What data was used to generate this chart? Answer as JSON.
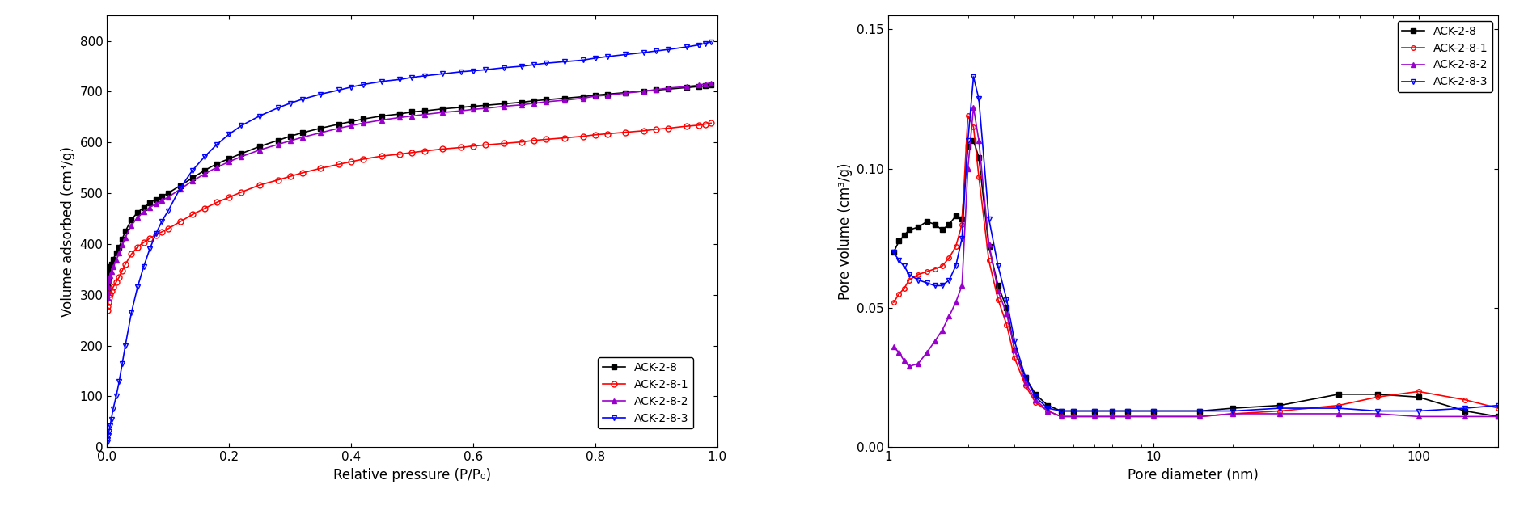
{
  "left": {
    "xlabel": "Relative pressure (P/P₀)",
    "ylabel": "Volume adsorbed (cm³/g)",
    "xlim": [
      0,
      1.0
    ],
    "ylim": [
      0,
      850
    ],
    "yticks": [
      0,
      100,
      200,
      300,
      400,
      500,
      600,
      700,
      800
    ],
    "xticks": [
      0.0,
      0.2,
      0.4,
      0.6,
      0.8,
      1.0
    ],
    "series": {
      "ACK-2-8": {
        "color": "#000000",
        "marker": "s",
        "marker_size": 5,
        "x": [
          0.0005,
          0.001,
          0.002,
          0.003,
          0.005,
          0.007,
          0.01,
          0.015,
          0.02,
          0.025,
          0.03,
          0.04,
          0.05,
          0.06,
          0.07,
          0.08,
          0.09,
          0.1,
          0.12,
          0.14,
          0.16,
          0.18,
          0.2,
          0.22,
          0.25,
          0.28,
          0.3,
          0.32,
          0.35,
          0.38,
          0.4,
          0.42,
          0.45,
          0.48,
          0.5,
          0.52,
          0.55,
          0.58,
          0.6,
          0.62,
          0.65,
          0.68,
          0.7,
          0.72,
          0.75,
          0.78,
          0.8,
          0.82,
          0.85,
          0.88,
          0.9,
          0.92,
          0.95,
          0.97,
          0.98,
          0.99
        ],
        "y": [
          310,
          320,
          330,
          345,
          355,
          360,
          370,
          382,
          394,
          410,
          425,
          448,
          462,
          472,
          481,
          488,
          494,
          500,
          515,
          530,
          545,
          558,
          568,
          578,
          592,
          604,
          612,
          619,
          628,
          636,
          641,
          646,
          652,
          656,
          660,
          662,
          666,
          669,
          671,
          673,
          676,
          679,
          682,
          684,
          687,
          690,
          693,
          695,
          698,
          701,
          703,
          705,
          708,
          710,
          711,
          713
        ]
      },
      "ACK-2-8-1": {
        "color": "#ff0000",
        "marker": "o",
        "marker_size": 5,
        "marker_facecolor": "none",
        "x": [
          0.0005,
          0.001,
          0.002,
          0.003,
          0.005,
          0.007,
          0.01,
          0.015,
          0.02,
          0.025,
          0.03,
          0.04,
          0.05,
          0.06,
          0.07,
          0.08,
          0.09,
          0.1,
          0.12,
          0.14,
          0.16,
          0.18,
          0.2,
          0.22,
          0.25,
          0.28,
          0.3,
          0.32,
          0.35,
          0.38,
          0.4,
          0.42,
          0.45,
          0.48,
          0.5,
          0.52,
          0.55,
          0.58,
          0.6,
          0.62,
          0.65,
          0.68,
          0.7,
          0.72,
          0.75,
          0.78,
          0.8,
          0.82,
          0.85,
          0.88,
          0.9,
          0.92,
          0.95,
          0.97,
          0.98,
          0.99
        ],
        "y": [
          270,
          278,
          285,
          295,
          302,
          308,
          315,
          325,
          335,
          348,
          360,
          380,
          394,
          403,
          411,
          418,
          424,
          430,
          444,
          458,
          470,
          482,
          492,
          502,
          516,
          526,
          533,
          540,
          549,
          557,
          562,
          567,
          573,
          577,
          580,
          583,
          587,
          590,
          593,
          595,
          598,
          601,
          604,
          606,
          609,
          612,
          615,
          617,
          620,
          623,
          626,
          628,
          632,
          634,
          636,
          638
        ]
      },
      "ACK-2-8-2": {
        "color": "#9900cc",
        "marker": "^",
        "marker_size": 5,
        "x": [
          0.0005,
          0.001,
          0.002,
          0.003,
          0.005,
          0.007,
          0.01,
          0.015,
          0.02,
          0.025,
          0.03,
          0.04,
          0.05,
          0.06,
          0.07,
          0.08,
          0.09,
          0.1,
          0.12,
          0.14,
          0.16,
          0.18,
          0.2,
          0.22,
          0.25,
          0.28,
          0.3,
          0.32,
          0.35,
          0.38,
          0.4,
          0.42,
          0.45,
          0.48,
          0.5,
          0.52,
          0.55,
          0.58,
          0.6,
          0.62,
          0.65,
          0.68,
          0.7,
          0.72,
          0.75,
          0.78,
          0.8,
          0.82,
          0.85,
          0.88,
          0.9,
          0.92,
          0.95,
          0.97,
          0.98,
          0.99
        ],
        "y": [
          295,
          305,
          315,
          328,
          338,
          345,
          355,
          368,
          382,
          398,
          413,
          437,
          452,
          463,
          472,
          479,
          486,
          492,
          508,
          524,
          538,
          551,
          562,
          572,
          585,
          596,
          603,
          610,
          619,
          628,
          633,
          638,
          644,
          649,
          652,
          655,
          659,
          662,
          665,
          667,
          671,
          674,
          677,
          680,
          683,
          687,
          691,
          693,
          697,
          701,
          704,
          707,
          710,
          713,
          715,
          717
        ]
      },
      "ACK-2-8-3": {
        "color": "#0000ff",
        "marker": "v",
        "marker_size": 5,
        "marker_facecolor": "none",
        "x": [
          0.0005,
          0.001,
          0.002,
          0.003,
          0.005,
          0.007,
          0.01,
          0.015,
          0.02,
          0.025,
          0.03,
          0.04,
          0.05,
          0.06,
          0.07,
          0.08,
          0.09,
          0.1,
          0.12,
          0.14,
          0.16,
          0.18,
          0.2,
          0.22,
          0.25,
          0.28,
          0.3,
          0.32,
          0.35,
          0.38,
          0.4,
          0.42,
          0.45,
          0.48,
          0.5,
          0.52,
          0.55,
          0.58,
          0.6,
          0.62,
          0.65,
          0.68,
          0.7,
          0.72,
          0.75,
          0.78,
          0.8,
          0.82,
          0.85,
          0.88,
          0.9,
          0.92,
          0.95,
          0.97,
          0.98,
          0.99
        ],
        "y": [
          10,
          15,
          22,
          30,
          42,
          55,
          75,
          100,
          130,
          165,
          200,
          265,
          315,
          355,
          390,
          420,
          445,
          465,
          510,
          545,
          572,
          596,
          616,
          633,
          652,
          668,
          677,
          685,
          695,
          703,
          709,
          714,
          720,
          724,
          728,
          731,
          735,
          739,
          741,
          743,
          747,
          750,
          753,
          756,
          759,
          762,
          766,
          769,
          773,
          777,
          780,
          783,
          788,
          792,
          795,
          798
        ]
      }
    }
  },
  "right": {
    "xlabel": "Pore diameter (nm)",
    "ylabel": "Pore volume (cm³/g)",
    "xlim": [
      1,
      200
    ],
    "ylim": [
      0.0,
      0.155
    ],
    "yticks": [
      0.0,
      0.05,
      0.1,
      0.15
    ],
    "series": {
      "ACK-2-8": {
        "color": "#000000",
        "marker": "s",
        "marker_size": 4,
        "x": [
          1.05,
          1.1,
          1.15,
          1.2,
          1.3,
          1.4,
          1.5,
          1.6,
          1.7,
          1.8,
          1.9,
          2.0,
          2.1,
          2.2,
          2.4,
          2.6,
          2.8,
          3.0,
          3.3,
          3.6,
          4.0,
          4.5,
          5.0,
          6.0,
          7.0,
          8.0,
          10.0,
          15.0,
          20.0,
          30.0,
          50.0,
          70.0,
          100.0,
          150.0,
          200.0
        ],
        "y": [
          0.07,
          0.074,
          0.076,
          0.078,
          0.079,
          0.081,
          0.08,
          0.078,
          0.08,
          0.083,
          0.082,
          0.108,
          0.11,
          0.104,
          0.072,
          0.058,
          0.05,
          0.035,
          0.025,
          0.019,
          0.015,
          0.013,
          0.013,
          0.013,
          0.013,
          0.013,
          0.013,
          0.013,
          0.014,
          0.015,
          0.019,
          0.019,
          0.018,
          0.013,
          0.011
        ]
      },
      "ACK-2-8-1": {
        "color": "#ff0000",
        "marker": "o",
        "marker_size": 4,
        "marker_facecolor": "none",
        "x": [
          1.05,
          1.1,
          1.15,
          1.2,
          1.3,
          1.4,
          1.5,
          1.6,
          1.7,
          1.8,
          1.9,
          2.0,
          2.1,
          2.2,
          2.4,
          2.6,
          2.8,
          3.0,
          3.3,
          3.6,
          4.0,
          4.5,
          5.0,
          6.0,
          7.0,
          8.0,
          10.0,
          15.0,
          20.0,
          30.0,
          50.0,
          70.0,
          100.0,
          150.0,
          200.0
        ],
        "y": [
          0.052,
          0.055,
          0.057,
          0.06,
          0.062,
          0.063,
          0.064,
          0.065,
          0.068,
          0.072,
          0.08,
          0.119,
          0.115,
          0.097,
          0.067,
          0.053,
          0.044,
          0.032,
          0.022,
          0.016,
          0.013,
          0.011,
          0.011,
          0.011,
          0.011,
          0.011,
          0.011,
          0.011,
          0.012,
          0.013,
          0.015,
          0.018,
          0.02,
          0.017,
          0.014
        ]
      },
      "ACK-2-8-2": {
        "color": "#9900cc",
        "marker": "^",
        "marker_size": 4,
        "x": [
          1.05,
          1.1,
          1.15,
          1.2,
          1.3,
          1.4,
          1.5,
          1.6,
          1.7,
          1.8,
          1.9,
          2.0,
          2.1,
          2.2,
          2.4,
          2.6,
          2.8,
          3.0,
          3.3,
          3.6,
          4.0,
          4.5,
          5.0,
          6.0,
          7.0,
          8.0,
          10.0,
          15.0,
          20.0,
          30.0,
          50.0,
          70.0,
          100.0,
          150.0,
          200.0
        ],
        "y": [
          0.036,
          0.034,
          0.031,
          0.029,
          0.03,
          0.034,
          0.038,
          0.042,
          0.047,
          0.052,
          0.058,
          0.1,
          0.122,
          0.11,
          0.073,
          0.056,
          0.048,
          0.035,
          0.023,
          0.017,
          0.013,
          0.011,
          0.011,
          0.011,
          0.011,
          0.011,
          0.011,
          0.011,
          0.012,
          0.012,
          0.012,
          0.012,
          0.011,
          0.011,
          0.011
        ]
      },
      "ACK-2-8-3": {
        "color": "#0000ff",
        "marker": "v",
        "marker_size": 4,
        "marker_facecolor": "none",
        "x": [
          1.05,
          1.1,
          1.15,
          1.2,
          1.3,
          1.4,
          1.5,
          1.6,
          1.7,
          1.8,
          1.9,
          2.0,
          2.1,
          2.2,
          2.4,
          2.6,
          2.8,
          3.0,
          3.3,
          3.6,
          4.0,
          4.5,
          5.0,
          6.0,
          7.0,
          8.0,
          10.0,
          15.0,
          20.0,
          30.0,
          50.0,
          70.0,
          100.0,
          150.0,
          200.0
        ],
        "y": [
          0.07,
          0.067,
          0.065,
          0.062,
          0.06,
          0.059,
          0.058,
          0.058,
          0.06,
          0.065,
          0.075,
          0.11,
          0.133,
          0.125,
          0.082,
          0.065,
          0.053,
          0.038,
          0.025,
          0.018,
          0.014,
          0.013,
          0.013,
          0.013,
          0.013,
          0.013,
          0.013,
          0.013,
          0.013,
          0.014,
          0.014,
          0.013,
          0.013,
          0.014,
          0.015
        ]
      }
    }
  }
}
